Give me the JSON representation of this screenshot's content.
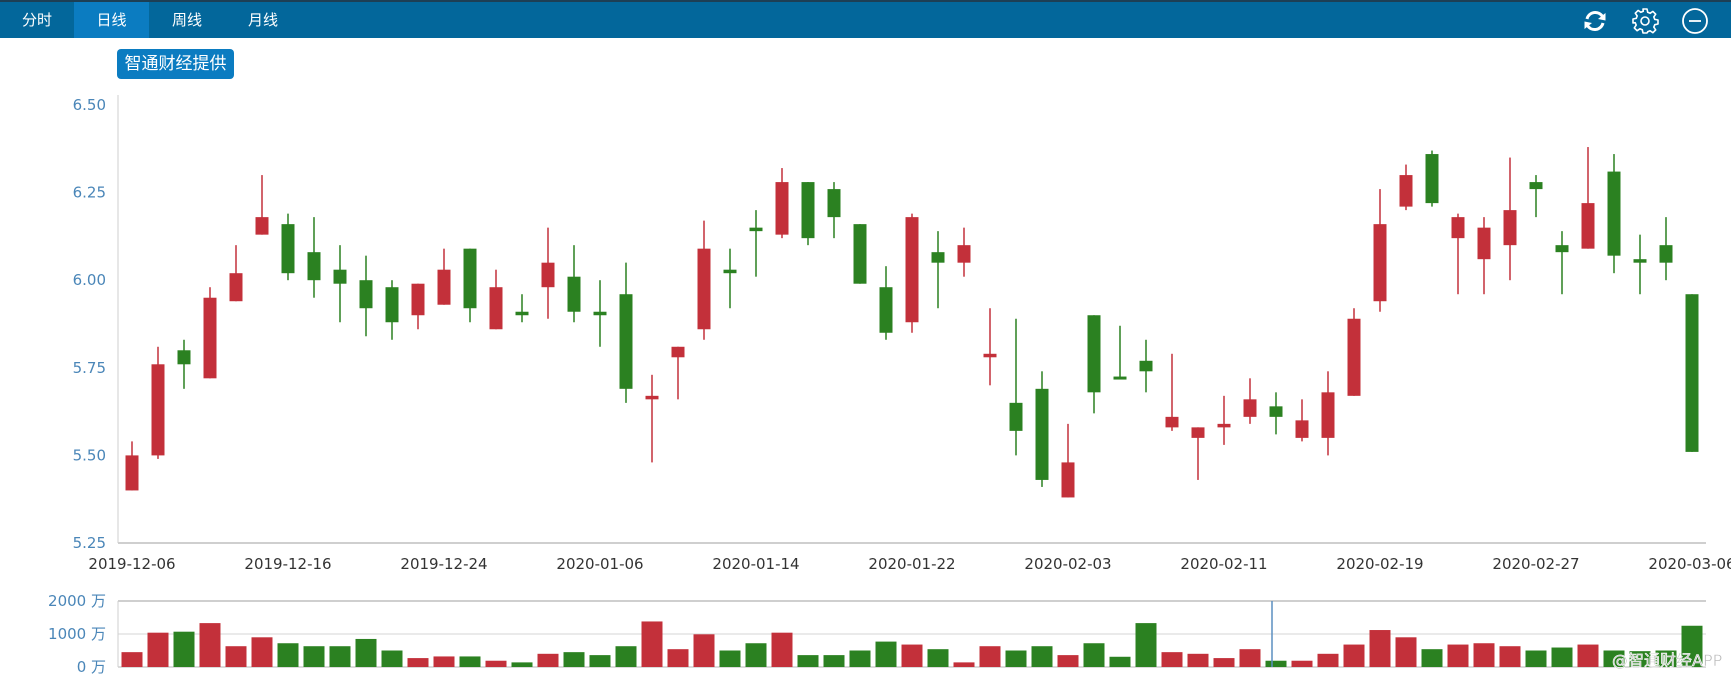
{
  "header": {
    "tabs": [
      {
        "label": "分时",
        "active": false
      },
      {
        "label": "日线",
        "active": true
      },
      {
        "label": "周线",
        "active": false
      },
      {
        "label": "月线",
        "active": false
      }
    ],
    "icons": [
      "refresh-icon",
      "gear-icon",
      "minus-circle-icon"
    ]
  },
  "badge": {
    "label": "智通财经提供"
  },
  "watermark": "@智通财经APP",
  "colors": {
    "header": "#03679b",
    "active_tab": "#0b7cc1",
    "up": "#c3303a",
    "down": "#2b8121",
    "axis_label": "#4a86b8"
  },
  "chart_data": [
    {
      "type": "candlestick",
      "ylim": [
        5.25,
        6.5
      ],
      "y_ticks": [
        "6.50",
        "6.25",
        "6.00",
        "5.75",
        "5.50",
        "5.25"
      ],
      "grid": false,
      "x_ticks": [
        {
          "label": "2019-12-06",
          "index": 0
        },
        {
          "label": "2019-12-16",
          "index": 6
        },
        {
          "label": "2019-12-24",
          "index": 12
        },
        {
          "label": "2020-01-06",
          "index": 18
        },
        {
          "label": "2020-01-14",
          "index": 24
        },
        {
          "label": "2020-01-22",
          "index": 30
        },
        {
          "label": "2020-02-03",
          "index": 36
        },
        {
          "label": "2020-02-11",
          "index": 42
        },
        {
          "label": "2020-02-19",
          "index": 48
        },
        {
          "label": "2020-02-27",
          "index": 54
        },
        {
          "label": "2020-03-06",
          "index": 60
        }
      ],
      "ohlc_fields": [
        "open",
        "high",
        "low",
        "close"
      ],
      "ohlc": [
        [
          5.4,
          5.54,
          5.4,
          5.5
        ],
        [
          5.5,
          5.81,
          5.49,
          5.76
        ],
        [
          5.8,
          5.83,
          5.69,
          5.76
        ],
        [
          5.72,
          5.98,
          5.72,
          5.95
        ],
        [
          5.94,
          6.1,
          5.94,
          6.02
        ],
        [
          6.13,
          6.3,
          6.13,
          6.18
        ],
        [
          6.16,
          6.19,
          6.0,
          6.02
        ],
        [
          6.08,
          6.18,
          5.95,
          6.0
        ],
        [
          6.03,
          6.1,
          5.88,
          5.99
        ],
        [
          6.0,
          6.07,
          5.84,
          5.92
        ],
        [
          5.98,
          6.0,
          5.83,
          5.88
        ],
        [
          5.9,
          5.99,
          5.86,
          5.99
        ],
        [
          5.93,
          6.09,
          5.93,
          6.03
        ],
        [
          6.09,
          6.09,
          5.88,
          5.92
        ],
        [
          5.86,
          6.03,
          5.86,
          5.98
        ],
        [
          5.91,
          5.96,
          5.88,
          5.9
        ],
        [
          5.98,
          6.15,
          5.89,
          6.05
        ],
        [
          6.01,
          6.1,
          5.88,
          5.91
        ],
        [
          5.91,
          6.0,
          5.81,
          5.9
        ],
        [
          5.96,
          6.05,
          5.65,
          5.69
        ],
        [
          5.66,
          5.73,
          5.48,
          5.67
        ],
        [
          5.78,
          5.81,
          5.66,
          5.81
        ],
        [
          5.86,
          6.17,
          5.83,
          6.09
        ],
        [
          6.03,
          6.09,
          5.92,
          6.02
        ],
        [
          6.15,
          6.2,
          6.01,
          6.14
        ],
        [
          6.13,
          6.32,
          6.12,
          6.28
        ],
        [
          6.28,
          6.28,
          6.1,
          6.12
        ],
        [
          6.26,
          6.28,
          6.12,
          6.18
        ],
        [
          6.16,
          6.16,
          5.99,
          5.99
        ],
        [
          5.98,
          6.04,
          5.83,
          5.85
        ],
        [
          5.88,
          6.19,
          5.85,
          6.18
        ],
        [
          6.08,
          6.14,
          5.92,
          6.05
        ],
        [
          6.05,
          6.15,
          6.01,
          6.1
        ],
        [
          5.78,
          5.92,
          5.7,
          5.79
        ],
        [
          5.65,
          5.89,
          5.5,
          5.57
        ],
        [
          5.69,
          5.74,
          5.41,
          5.43
        ],
        [
          5.38,
          5.59,
          5.38,
          5.48
        ],
        [
          5.9,
          5.9,
          5.62,
          5.68
        ],
        [
          5.725,
          5.87,
          5.72,
          5.72
        ],
        [
          5.77,
          5.83,
          5.68,
          5.74
        ],
        [
          5.58,
          5.79,
          5.57,
          5.61
        ],
        [
          5.55,
          5.58,
          5.43,
          5.58
        ],
        [
          5.58,
          5.67,
          5.53,
          5.59
        ],
        [
          5.61,
          5.72,
          5.59,
          5.66
        ],
        [
          5.64,
          5.68,
          5.56,
          5.61
        ],
        [
          5.55,
          5.66,
          5.54,
          5.6
        ],
        [
          5.55,
          5.74,
          5.5,
          5.68
        ],
        [
          5.67,
          5.92,
          5.67,
          5.89
        ],
        [
          5.94,
          6.26,
          5.91,
          6.16
        ],
        [
          6.21,
          6.33,
          6.2,
          6.3
        ],
        [
          6.36,
          6.37,
          6.21,
          6.22
        ],
        [
          6.12,
          6.19,
          5.96,
          6.18
        ],
        [
          6.06,
          6.18,
          5.96,
          6.15
        ],
        [
          6.1,
          6.35,
          6.0,
          6.2
        ],
        [
          6.28,
          6.3,
          6.18,
          6.26
        ],
        [
          6.1,
          6.14,
          5.96,
          6.08
        ],
        [
          6.09,
          6.38,
          6.09,
          6.22
        ],
        [
          6.31,
          6.36,
          6.02,
          6.07
        ],
        [
          6.06,
          6.13,
          5.96,
          6.05
        ],
        [
          6.1,
          6.18,
          6.0,
          6.05
        ],
        [
          5.96,
          5.96,
          5.51,
          5.51
        ]
      ]
    },
    {
      "type": "bar",
      "unit": "万",
      "ylim": [
        0,
        2000
      ],
      "y_ticks": [
        "2000 万",
        "1000 万",
        "0 万"
      ],
      "grid": true,
      "values": [
        450,
        1040,
        1070,
        1330,
        630,
        900,
        720,
        630,
        630,
        850,
        500,
        270,
        320,
        320,
        190,
        140,
        400,
        450,
        360,
        630,
        1380,
        540,
        990,
        500,
        720,
        1040,
        360,
        360,
        500,
        770,
        680,
        540,
        140,
        630,
        500,
        630,
        360,
        720,
        310,
        1330,
        450,
        400,
        270,
        540,
        190,
        190,
        400,
        680,
        1120,
        900,
        540,
        680,
        720,
        630,
        500,
        590,
        680,
        500,
        480,
        500,
        1250
      ],
      "crosshair_index": 44
    }
  ]
}
